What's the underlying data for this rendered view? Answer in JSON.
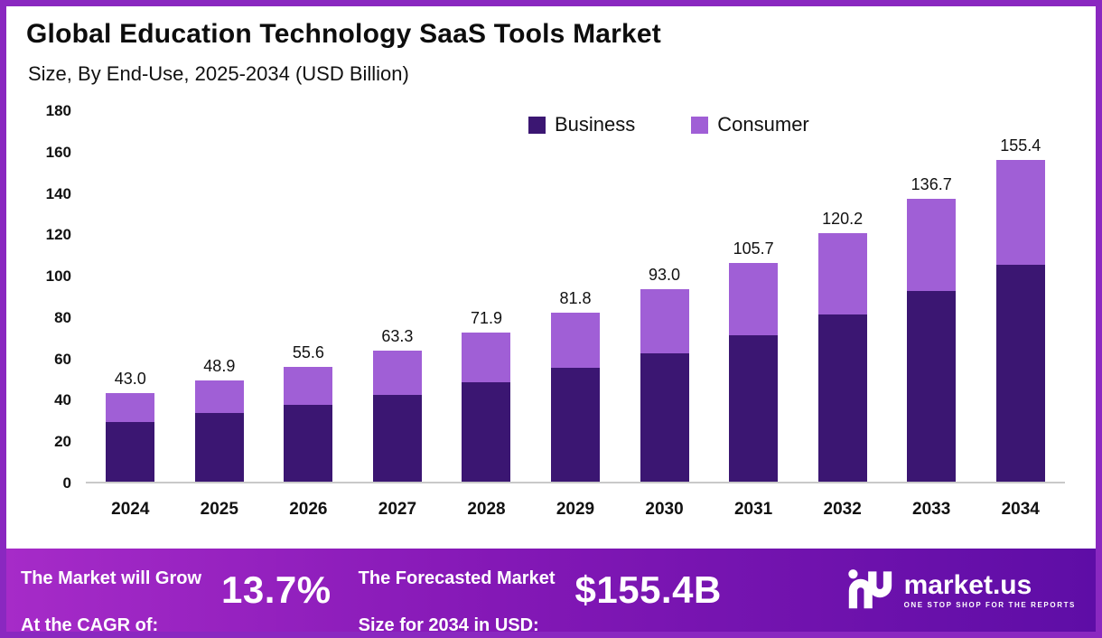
{
  "title": "Global Education Technology SaaS Tools Market",
  "subtitle": "Size, By End-Use, 2025-2034 (USD Billion)",
  "chart_data": {
    "type": "bar",
    "stacked": true,
    "title": "Global Education Technology SaaS Tools Market Size, By End-Use, 2025-2034 (USD Billion)",
    "categories": [
      "2024",
      "2025",
      "2026",
      "2027",
      "2028",
      "2029",
      "2030",
      "2031",
      "2032",
      "2033",
      "2034"
    ],
    "series": [
      {
        "name": "Business",
        "color": "#3b1672",
        "values": [
          29.0,
          33.0,
          37.0,
          42.0,
          48.0,
          55.0,
          62.0,
          71.0,
          81.0,
          92.0,
          105.0
        ]
      },
      {
        "name": "Consumer",
        "color": "#a05fd6",
        "values": [
          14.0,
          15.9,
          18.6,
          21.3,
          23.9,
          26.8,
          31.0,
          34.7,
          39.2,
          44.7,
          50.4
        ]
      }
    ],
    "totals": [
      43.0,
      48.9,
      55.6,
      63.3,
      71.9,
      81.8,
      93.0,
      105.7,
      120.2,
      136.7,
      155.4
    ],
    "total_labels": [
      "43.0",
      "48.9",
      "55.6",
      "63.3",
      "71.9",
      "81.8",
      "93.0",
      "105.7",
      "120.2",
      "136.7",
      "155.4"
    ],
    "xlabel": "",
    "ylabel": "",
    "ylim": [
      0,
      180
    ],
    "yticks": [
      0,
      20,
      40,
      60,
      80,
      100,
      120,
      140,
      160,
      180
    ],
    "grid": false,
    "legend_position": "top"
  },
  "footer": {
    "cagr_lines": [
      "The Market will Grow",
      "At the CAGR of:"
    ],
    "cagr_value": "13.7%",
    "forecast_lines": [
      "The Forecasted Market",
      "Size for 2034 in USD:"
    ],
    "forecast_value": "$155.4B",
    "brand": "market.us",
    "brand_tagline": "ONE STOP SHOP FOR THE REPORTS"
  }
}
